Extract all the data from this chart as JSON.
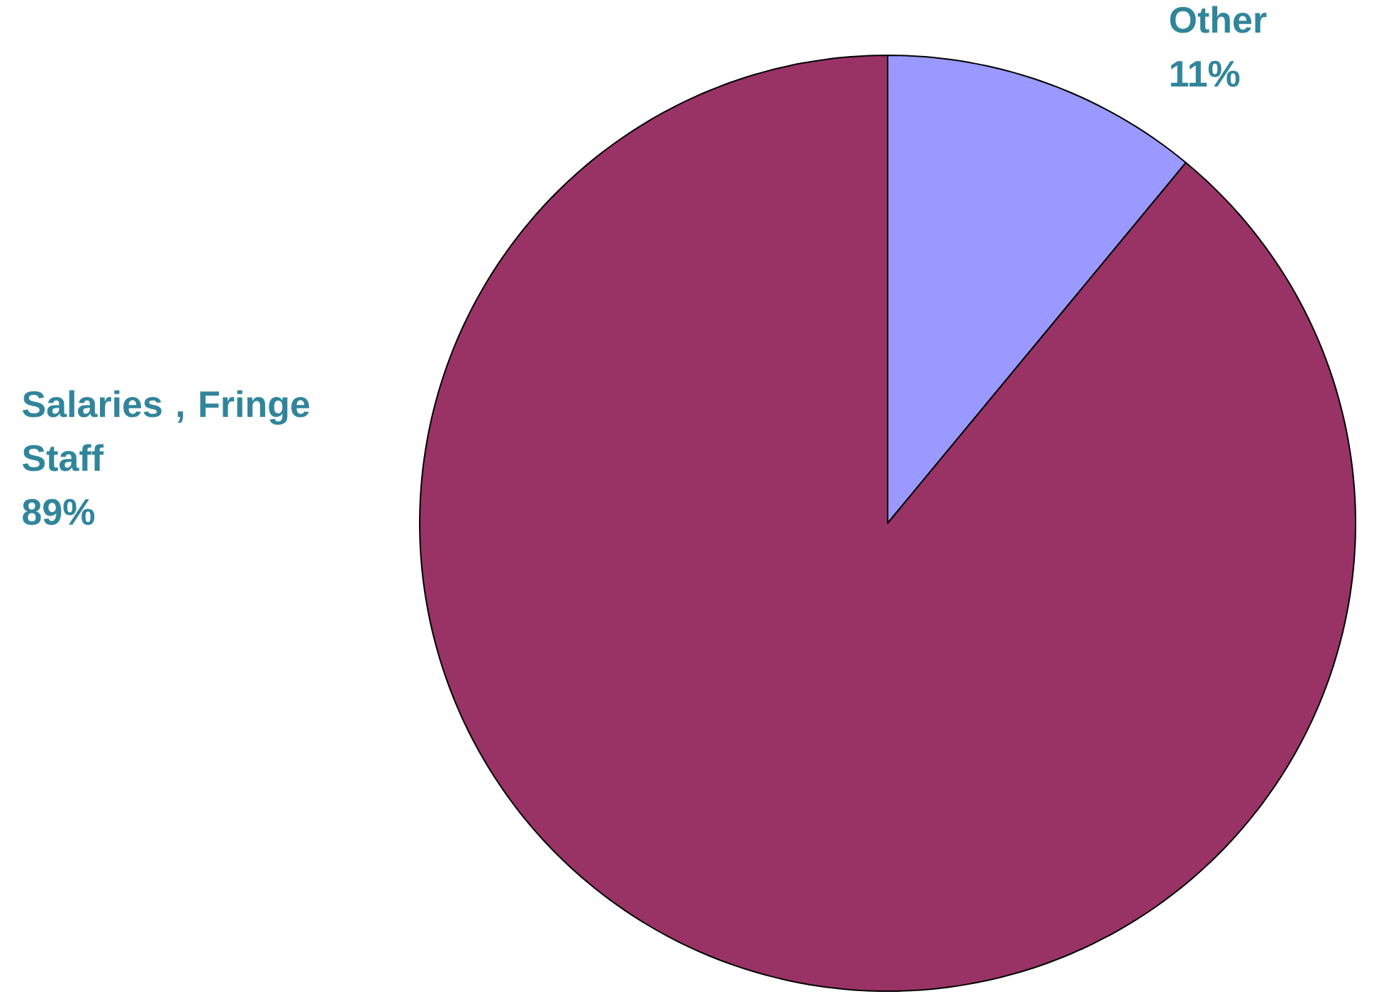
{
  "chart_data": {
    "type": "pie",
    "categories": [
      "Salaries , Fringe Staff",
      "Other"
    ],
    "values": [
      89,
      11
    ],
    "value_labels": [
      "89%",
      "11%"
    ],
    "colors": [
      "#993366",
      "#9999ff"
    ]
  }
}
